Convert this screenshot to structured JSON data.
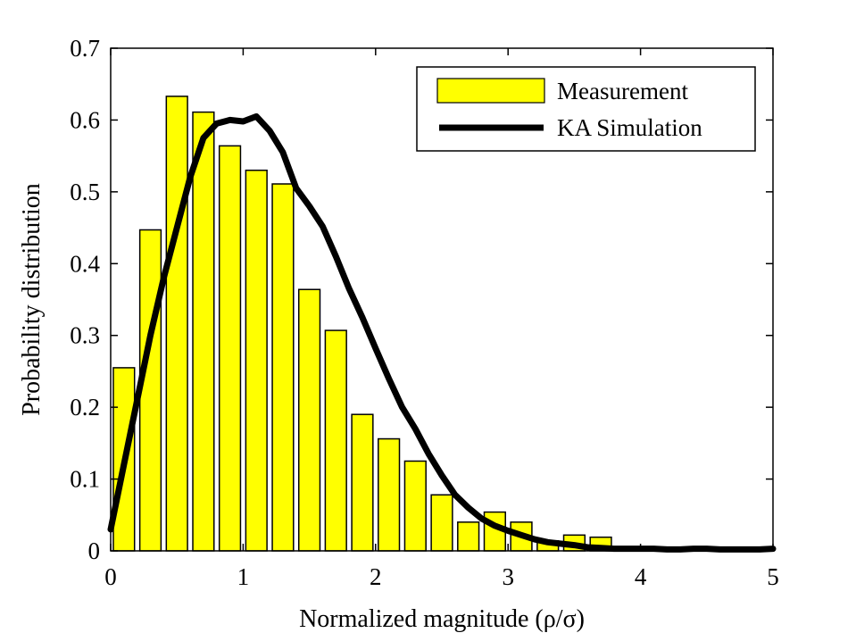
{
  "chart_data": {
    "type": "bar",
    "title": "",
    "xlabel": "Normalized magnitude (ρ/σ)",
    "ylabel": "Probability distribution",
    "xlim": [
      0,
      5
    ],
    "ylim": [
      0,
      0.7
    ],
    "xticks": [
      "0",
      "1",
      "2",
      "3",
      "4",
      "5"
    ],
    "yticks": [
      "0",
      "0.1",
      "0.2",
      "0.3",
      "0.4",
      "0.5",
      "0.6",
      "0.7"
    ],
    "grid": false,
    "legend_position": "top-right",
    "bar_color": "#ffff00",
    "line_color": "#000000",
    "series": [
      {
        "name": "Measurement",
        "type": "bar",
        "x": [
          0.1,
          0.3,
          0.5,
          0.7,
          0.9,
          1.1,
          1.3,
          1.5,
          1.7,
          1.9,
          2.1,
          2.3,
          2.5,
          2.7,
          2.9,
          3.1,
          3.3,
          3.5,
          3.7,
          3.9,
          4.1,
          4.3,
          4.5,
          4.7,
          4.9
        ],
        "values": [
          0.255,
          0.447,
          0.633,
          0.611,
          0.564,
          0.53,
          0.511,
          0.364,
          0.307,
          0.19,
          0.156,
          0.125,
          0.078,
          0.04,
          0.054,
          0.04,
          0.014,
          0.022,
          0.019,
          0.004,
          0.003,
          0.005,
          0.002,
          0.001,
          0.001
        ]
      },
      {
        "name": "KA Simulation",
        "type": "line",
        "x": [
          0.0,
          0.1,
          0.2,
          0.3,
          0.4,
          0.5,
          0.6,
          0.7,
          0.8,
          0.9,
          1.0,
          1.1,
          1.2,
          1.3,
          1.4,
          1.5,
          1.6,
          1.7,
          1.8,
          1.9,
          2.0,
          2.1,
          2.2,
          2.3,
          2.4,
          2.5,
          2.6,
          2.7,
          2.8,
          2.9,
          3.0,
          3.1,
          3.2,
          3.3,
          3.4,
          3.5,
          3.6,
          3.7,
          3.8,
          3.9,
          4.0,
          4.1,
          4.2,
          4.3,
          4.4,
          4.5,
          4.6,
          4.7,
          4.8,
          4.9,
          5.0
        ],
        "values": [
          0.03,
          0.12,
          0.21,
          0.3,
          0.38,
          0.45,
          0.52,
          0.575,
          0.595,
          0.6,
          0.598,
          0.605,
          0.585,
          0.555,
          0.505,
          0.48,
          0.452,
          0.41,
          0.365,
          0.325,
          0.282,
          0.24,
          0.2,
          0.17,
          0.135,
          0.105,
          0.078,
          0.06,
          0.045,
          0.035,
          0.028,
          0.022,
          0.016,
          0.012,
          0.01,
          0.008,
          0.005,
          0.004,
          0.003,
          0.003,
          0.003,
          0.003,
          0.002,
          0.002,
          0.003,
          0.003,
          0.002,
          0.002,
          0.002,
          0.002,
          0.003
        ]
      }
    ]
  }
}
